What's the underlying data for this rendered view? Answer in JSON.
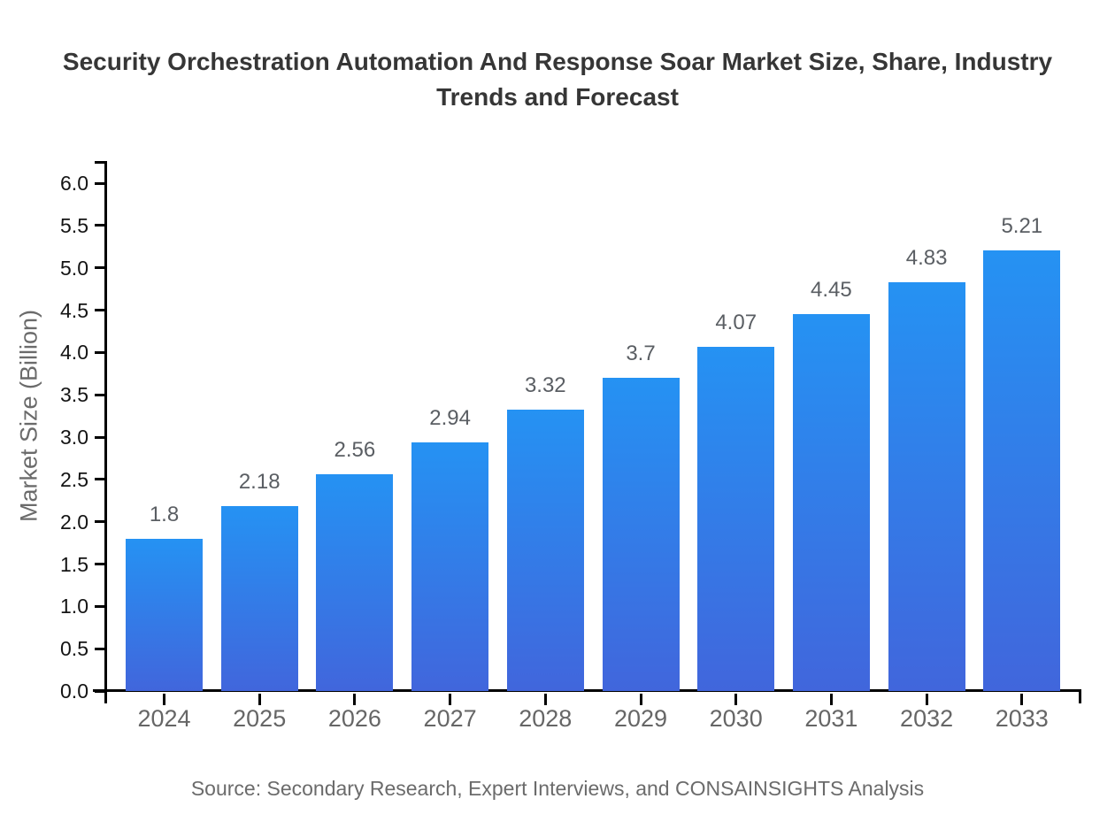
{
  "source": "Source: Secondary Research, Expert Interviews, and CONSAINSIGHTS Analysis",
  "chart_data": {
    "type": "bar",
    "title": "Security Orchestration Automation And Response Soar Market Size, Share, Industry Trends and Forecast",
    "categories": [
      "2024",
      "2025",
      "2026",
      "2027",
      "2028",
      "2029",
      "2030",
      "2031",
      "2032",
      "2033"
    ],
    "values": [
      1.8,
      2.18,
      2.56,
      2.94,
      3.32,
      3.7,
      4.07,
      4.45,
      4.83,
      5.21
    ],
    "value_labels": [
      "1.8",
      "2.18",
      "2.56",
      "2.94",
      "3.32",
      "3.7",
      "4.07",
      "4.45",
      "4.83",
      "5.21"
    ],
    "xlabel": "",
    "ylabel": "Market Size (Billion)",
    "ylim": [
      0.0,
      6.0
    ],
    "ytick_step": 0.5,
    "ytick_labels": [
      "0.0",
      "0.5",
      "1.0",
      "1.5",
      "2.0",
      "2.5",
      "3.0",
      "3.5",
      "4.0",
      "4.5",
      "5.0",
      "5.5",
      "6.0"
    ],
    "grid": "off",
    "legend": "none",
    "colors": {
      "bar_gradient_top": "#2592f3",
      "bar_gradient_bottom": "#4166dc",
      "axis": "#000000",
      "title_text": "#363636",
      "ytick_text": "#141414",
      "xtick_text": "#666666",
      "value_label_text": "#5a5e63",
      "source_text": "#6b6b6b",
      "background": "#ffffff"
    }
  }
}
